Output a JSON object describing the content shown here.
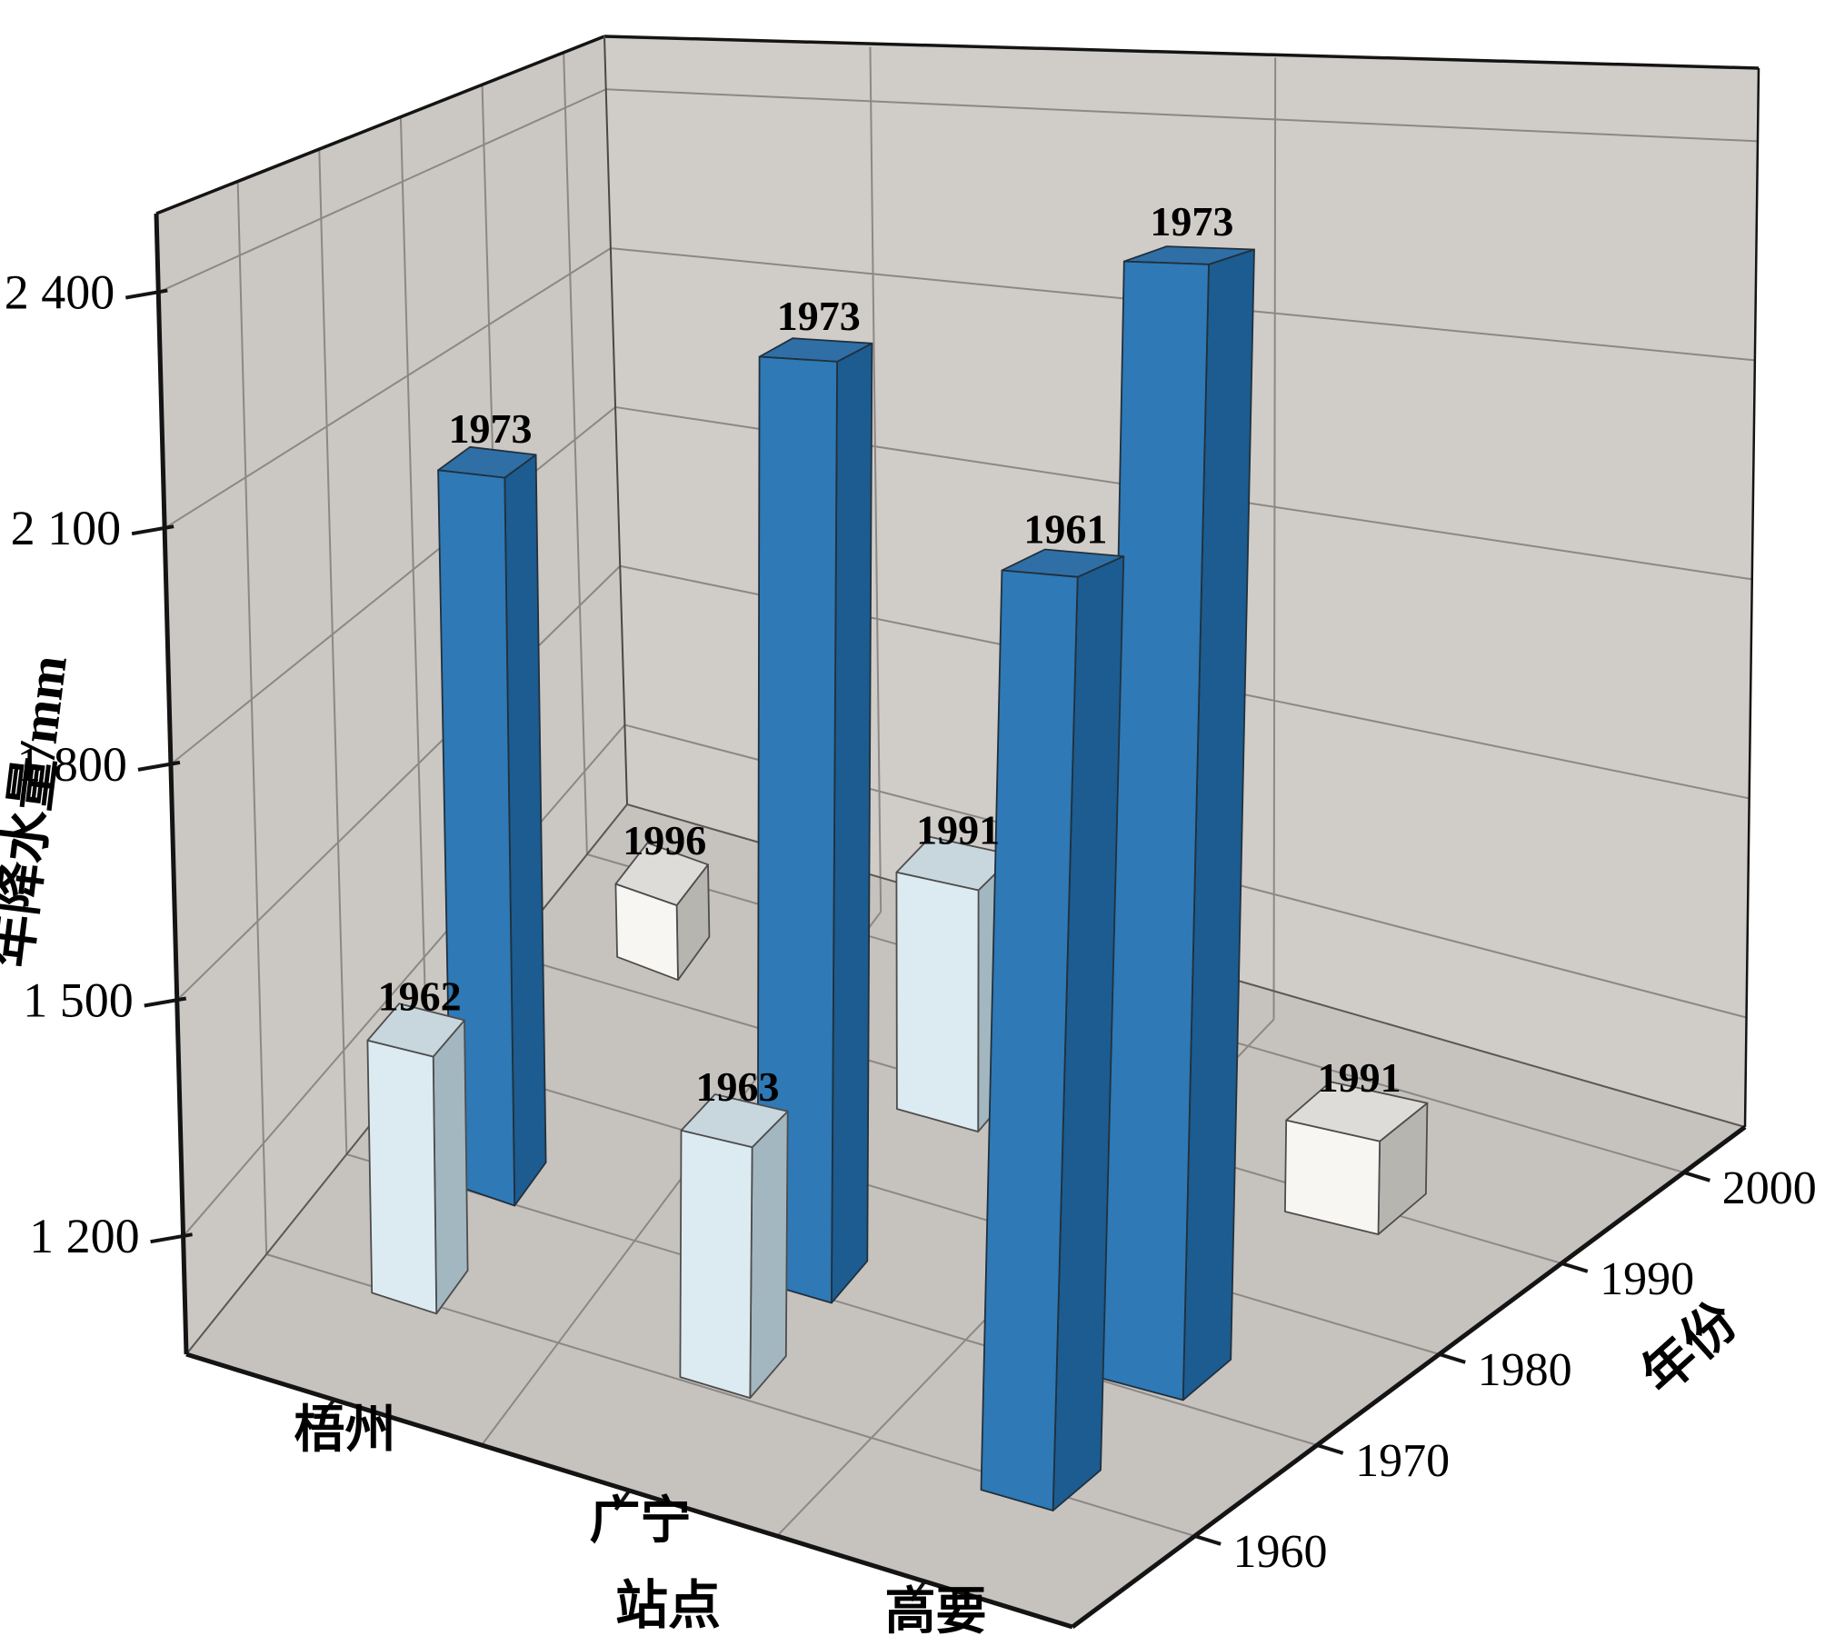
{
  "chart_data": {
    "type": "bar",
    "subtype": "3d-column",
    "title": "",
    "value_axis": {
      "label": "年降水量/mm",
      "range": [
        1050,
        2500
      ],
      "ticks": [
        {
          "value": 1200,
          "label": "1 200"
        },
        {
          "value": 1500,
          "label": "1 500"
        },
        {
          "value": 1800,
          "label": "1 800"
        },
        {
          "value": 2100,
          "label": "2 100"
        },
        {
          "value": 2400,
          "label": "2 400"
        }
      ]
    },
    "station_axis": {
      "label": "站点",
      "categories": [
        "梧州",
        "广宁",
        "高要"
      ]
    },
    "year_axis": {
      "label": "年份",
      "range": [
        1950,
        2005
      ],
      "ticks": [
        1960,
        1970,
        1980,
        1990,
        2000
      ]
    },
    "bars": [
      {
        "station": "梧州",
        "year": 1962,
        "value": 1380,
        "series": "light"
      },
      {
        "station": "梧州",
        "year": 1973,
        "value": 2050,
        "series": "blue"
      },
      {
        "station": "梧州",
        "year": 1996,
        "value": 1170,
        "series": "white"
      },
      {
        "station": "广宁",
        "year": 1963,
        "value": 1350,
        "series": "light"
      },
      {
        "station": "广宁",
        "year": 1973,
        "value": 2240,
        "series": "blue"
      },
      {
        "station": "广宁",
        "year": 1991,
        "value": 1390,
        "series": "light"
      },
      {
        "station": "高要",
        "year": 1961,
        "value": 2080,
        "series": "blue"
      },
      {
        "station": "高要",
        "year": 1973,
        "value": 2380,
        "series": "blue"
      },
      {
        "station": "高要",
        "year": 1991,
        "value": 1170,
        "series": "white"
      }
    ],
    "series_colors": {
      "blue": {
        "front": "#2e79b6",
        "side": "#1c5c90",
        "top": "#2f6fa6"
      },
      "light": {
        "front": "#dcebf2",
        "side": "#a3b7c0",
        "top": "#c8d6dd"
      },
      "white": {
        "front": "#f7f6f3",
        "side": "#b7b5b0",
        "top": "#dedcd8"
      }
    },
    "scene_colors": {
      "left_wall": "#cbc7c3",
      "right_wall": "#d0ccc8",
      "floor": "#c6c2be",
      "gridline": "#8b8885",
      "edge": "#141414",
      "background": "#ffffff"
    }
  }
}
